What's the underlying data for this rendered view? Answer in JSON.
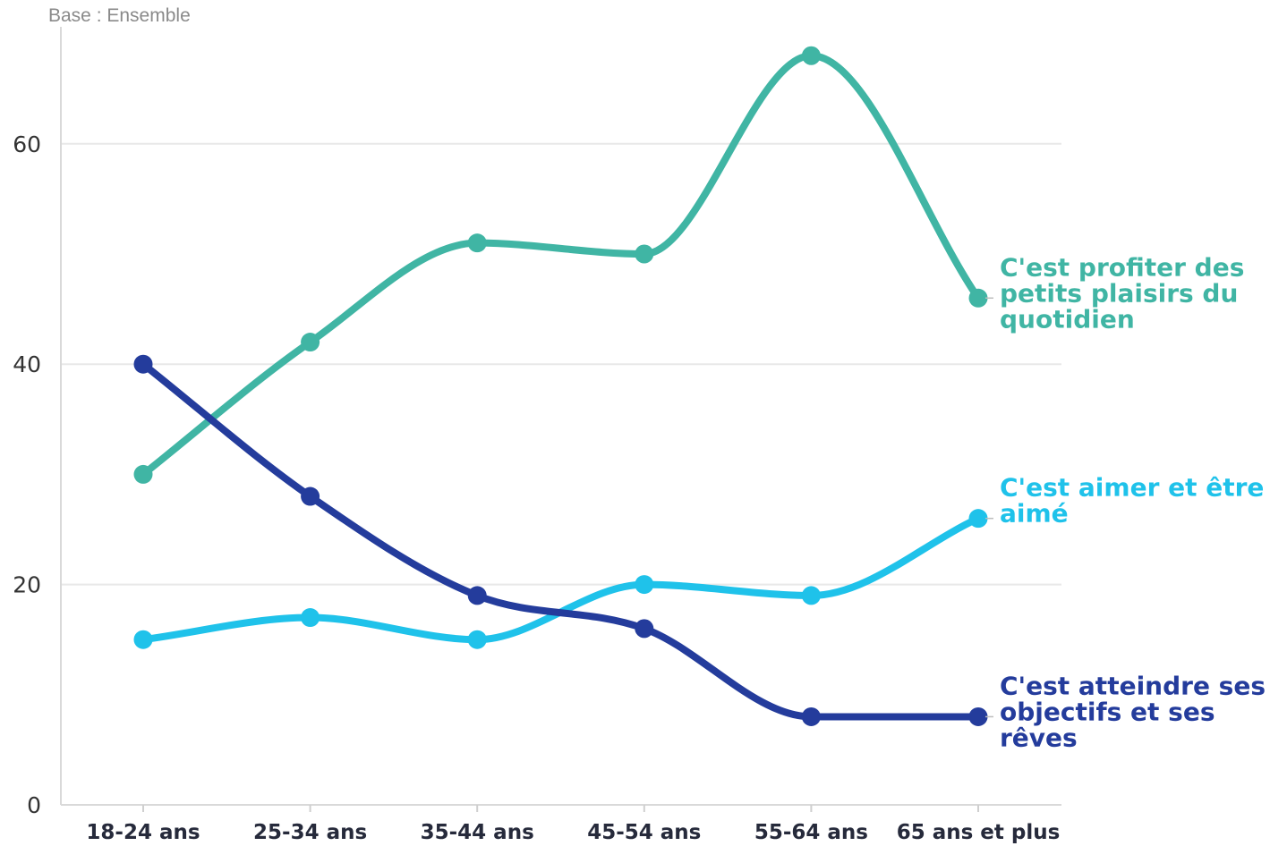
{
  "chart_data": {
    "type": "line",
    "note": "Base : Ensemble",
    "categories": [
      "18-24 ans",
      "25-34 ans",
      "35-44 ans",
      "45-54 ans",
      "55-64 ans",
      "65 ans et plus"
    ],
    "y_ticks": [
      "0",
      "20",
      "40",
      "60"
    ],
    "ylim": [
      0,
      70
    ],
    "grid": true,
    "legend_placement": "right, inline at line ends",
    "series": [
      {
        "name": "C'est profiter des petits plaisirs du quotidien",
        "label_lines": [
          "C'est profiter des",
          "petits plaisirs du",
          "quotidien"
        ],
        "color": "#40b5a4",
        "values": [
          30,
          42,
          51,
          50,
          68,
          46
        ]
      },
      {
        "name": "C'est aimer et être aimé",
        "label_lines": [
          "C'est aimer et être",
          "aimé"
        ],
        "color": "#1fc2ea",
        "values": [
          15,
          17,
          15,
          20,
          19,
          26
        ]
      },
      {
        "name": "C'est atteindre ses objectifs et ses rêves",
        "label_lines": [
          "C'est atteindre ses",
          "objectifs et ses",
          "rêves"
        ],
        "color": "#243c9c",
        "values": [
          40,
          28,
          19,
          16,
          8,
          8
        ]
      }
    ]
  }
}
